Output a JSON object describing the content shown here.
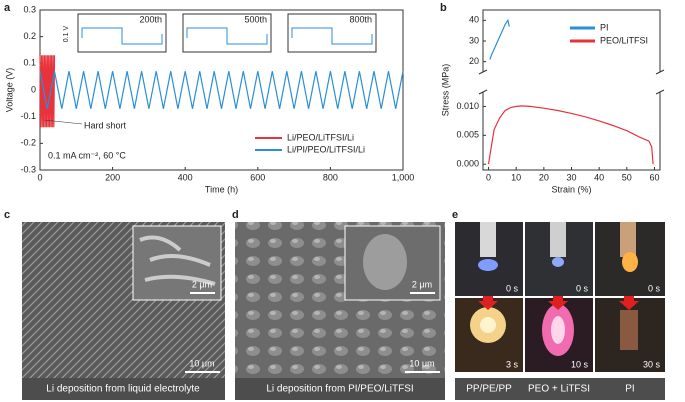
{
  "panel_labels": [
    "a",
    "b",
    "c",
    "d",
    "e"
  ],
  "chart_data": [
    {
      "type": "line",
      "x_label": "Time (h)",
      "y_label": "Voltage (V)",
      "xlim": [
        0,
        1000
      ],
      "xticks": [
        0,
        200,
        400,
        600,
        800,
        {
          "value": 1000,
          "label": "1,000"
        }
      ],
      "ylim": [
        -0.3,
        0.3
      ],
      "yticks": [
        -0.3,
        -0.2,
        -0.1,
        0,
        0.1,
        0.2,
        0.3
      ],
      "legend": "lower right",
      "annotations": [
        "Hard short",
        "0.1 mA cm⁻², 60 °C"
      ],
      "insets": [
        "200th",
        "500th",
        "800th"
      ],
      "inset_scale": "0.1 V",
      "series": [
        {
          "name": "Li/PEO/LiTFSI/Li",
          "color": "#e8323c",
          "x": [
            0,
            2,
            4,
            6,
            8,
            10,
            12,
            14,
            16,
            18,
            20,
            22,
            24,
            26,
            28,
            30,
            32,
            34,
            36,
            38,
            40
          ],
          "values": [
            0.13,
            -0.14,
            0.13,
            -0.14,
            0.13,
            -0.14,
            0.13,
            -0.14,
            0.13,
            -0.14,
            0.13,
            -0.14,
            0.13,
            -0.14,
            0.13,
            -0.14,
            0.13,
            -0.14,
            0.13,
            -0.14,
            0.13
          ]
        },
        {
          "name": "Li/PI/PEO/LiTFSI/Li",
          "color": "#2a8fd8",
          "x": [
            0,
            20,
            40,
            60,
            80,
            100,
            120,
            140,
            160,
            180,
            200,
            220,
            240,
            260,
            280,
            300,
            320,
            340,
            360,
            380,
            400,
            420,
            440,
            460,
            480,
            500,
            520,
            540,
            560,
            580,
            600,
            620,
            640,
            660,
            680,
            700,
            720,
            740,
            760,
            780,
            800,
            820,
            840,
            860,
            880,
            900,
            920,
            940,
            960,
            980,
            1000
          ],
          "values": [
            0.07,
            -0.07,
            0.07,
            -0.07,
            0.07,
            -0.07,
            0.07,
            -0.07,
            0.07,
            -0.07,
            0.07,
            -0.07,
            0.07,
            -0.07,
            0.07,
            -0.07,
            0.07,
            -0.07,
            0.07,
            -0.07,
            0.07,
            -0.07,
            0.07,
            -0.07,
            0.07,
            -0.07,
            0.07,
            -0.07,
            0.07,
            -0.07,
            0.07,
            -0.07,
            0.07,
            -0.07,
            0.07,
            -0.07,
            0.07,
            -0.07,
            0.07,
            -0.07,
            0.07,
            -0.07,
            0.07,
            -0.07,
            0.07,
            -0.07,
            0.07,
            -0.07,
            0.07,
            -0.07,
            0.07
          ]
        }
      ]
    },
    {
      "type": "line",
      "x_label": "Strain (%)",
      "y_label": "Stress (MPa)",
      "xlim": [
        -2,
        62
      ],
      "xticks": [
        0,
        10,
        20,
        30,
        40,
        50,
        60
      ],
      "upper_ylim": [
        15,
        45
      ],
      "upper_yticks": [
        20,
        30,
        40
      ],
      "ylim": [
        -0.001,
        0.0125
      ],
      "yticks": [
        {
          "value": 0,
          "label": "0.000"
        },
        {
          "value": 0.005,
          "label": "0.005"
        },
        {
          "value": 0.01,
          "label": "0.010"
        }
      ],
      "legend": "upper right",
      "series": [
        {
          "name": "PI",
          "color": "#2a8fd8",
          "axis": "upper",
          "x": [
            0.5,
            1,
            2,
            3,
            4,
            5,
            6,
            7,
            7.5
          ],
          "values": [
            21,
            23,
            26,
            29,
            32,
            35,
            38,
            40,
            37
          ]
        },
        {
          "name": "PEO/LiTFSI",
          "color": "#e8323c",
          "x": [
            0,
            1,
            2,
            4,
            6,
            8,
            10,
            12,
            15,
            20,
            25,
            30,
            35,
            40,
            45,
            50,
            55,
            58,
            59,
            59.5
          ],
          "values": [
            0,
            0.003,
            0.006,
            0.008,
            0.0093,
            0.0098,
            0.01,
            0.0101,
            0.01,
            0.0097,
            0.0093,
            0.0088,
            0.0082,
            0.0075,
            0.0067,
            0.0058,
            0.0046,
            0.004,
            0.003,
            0
          ]
        }
      ]
    }
  ],
  "images": [
    {
      "scale_inset": "2 μm",
      "scale_main": "10 μm",
      "caption": "Li deposition from liquid electrolyte"
    },
    {
      "scale_inset": "2 μm",
      "scale_main": "10 μm",
      "caption": "Li deposition from PI/PEO/LiTFSI"
    },
    {
      "times": [
        "0 s",
        "0 s",
        "0 s",
        "3 s",
        "10 s",
        "30 s"
      ],
      "captions": [
        "PP/PE/PP",
        "PEO + LiTFSI",
        "PI"
      ]
    }
  ]
}
